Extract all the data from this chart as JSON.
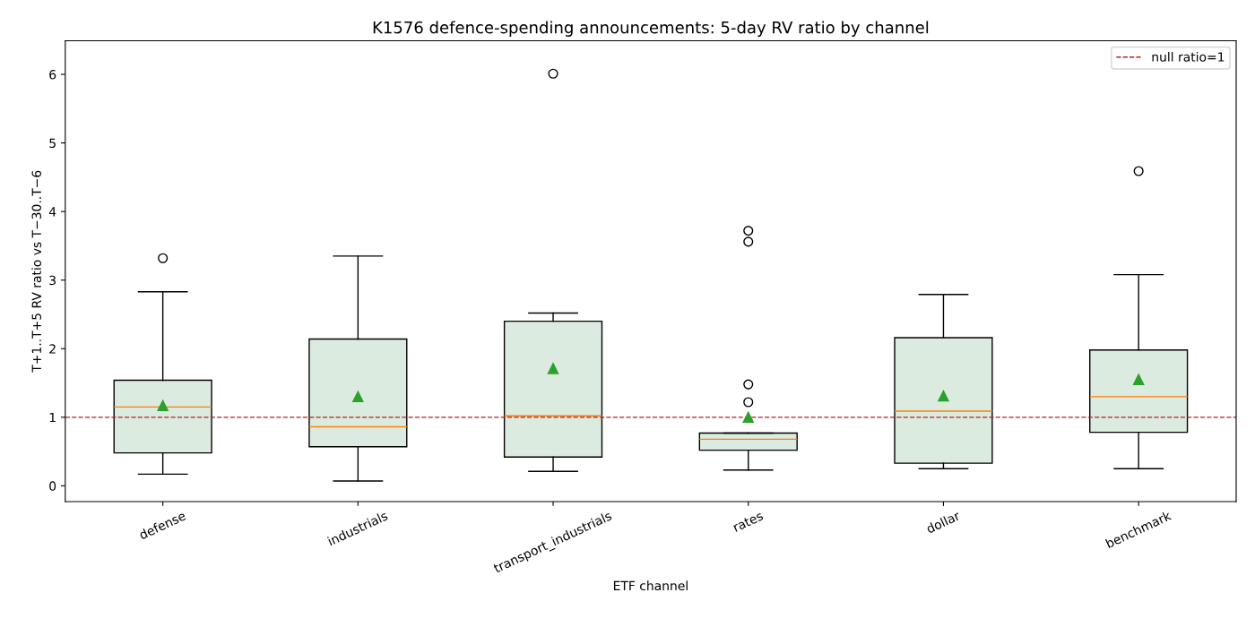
{
  "chart_data": {
    "type": "box",
    "title": "K1576 defence-spending announcements: 5-day RV ratio by channel",
    "xlabel": "ETF channel",
    "ylabel": "T+1..T+5 RV ratio vs T−30..T−6",
    "categories": [
      "defense",
      "industrials",
      "transport_industrials",
      "rates",
      "dollar",
      "benchmark"
    ],
    "series": [
      {
        "color": "#dcebdf",
        "boxes": [
          {
            "low": 0.17,
            "q1": 0.48,
            "median": 1.15,
            "q3": 1.54,
            "high": 2.83,
            "mean": 1.17,
            "outliers": [
              3.32
            ]
          },
          {
            "low": 0.07,
            "q1": 0.57,
            "median": 0.86,
            "q3": 2.14,
            "high": 3.35,
            "mean": 1.3
          },
          {
            "low": 0.21,
            "q1": 0.42,
            "median": 1.02,
            "q3": 2.4,
            "high": 2.52,
            "mean": 1.71,
            "outliers": [
              6.01
            ]
          },
          {
            "low": 0.23,
            "q1": 0.52,
            "median": 0.68,
            "q3": 0.77,
            "high": 0.77,
            "mean": 1.0,
            "outliers": [
              1.22,
              1.48,
              3.56,
              3.72
            ]
          },
          {
            "low": 0.25,
            "q1": 0.33,
            "median": 1.09,
            "q3": 2.16,
            "high": 2.79,
            "mean": 1.31
          },
          {
            "low": 0.25,
            "q1": 0.78,
            "median": 1.3,
            "q3": 1.98,
            "high": 3.08,
            "mean": 1.55,
            "outliers": [
              4.59
            ]
          }
        ]
      }
    ],
    "ylim": [
      -0.23,
      6.49
    ],
    "yticks": [
      0,
      1,
      2,
      3,
      4,
      5,
      6
    ],
    "ref_lines": [
      {
        "axis": "y",
        "value": 1,
        "label": "null ratio=1",
        "color": "#b22222",
        "line_style": "dashed"
      }
    ],
    "legend": "top right",
    "grid": false
  }
}
